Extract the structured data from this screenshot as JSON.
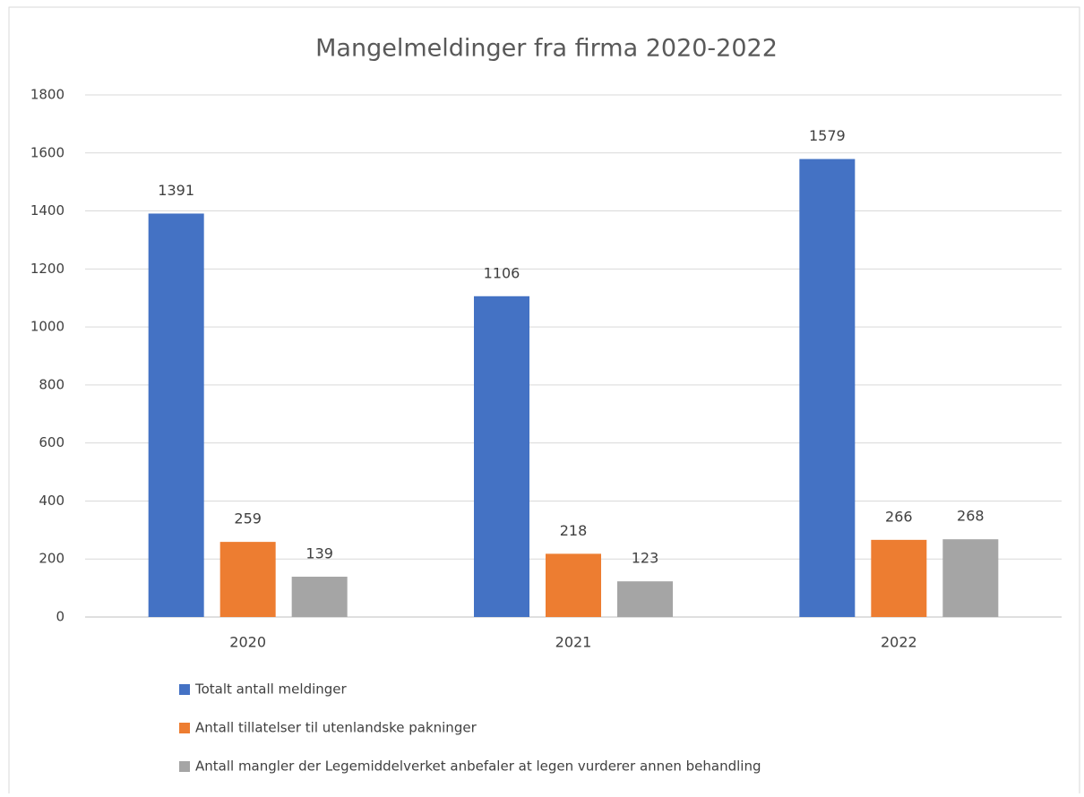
{
  "chart_data": {
    "type": "bar",
    "title": "Mangelmeldinger fra firma 2020-2022",
    "categories": [
      "2020",
      "2021",
      "2022"
    ],
    "series": [
      {
        "name": "Totalt antall meldinger",
        "color": "#4472c4",
        "values": [
          1391,
          1106,
          1579
        ]
      },
      {
        "name": "Antall tillatelser til utenlandske pakninger",
        "color": "#ed7d31",
        "values": [
          259,
          218,
          266
        ]
      },
      {
        "name": "Antall mangler der Legemiddelverket anbefaler at legen vurderer annen behandling",
        "color": "#a5a5a5",
        "values": [
          139,
          123,
          268
        ]
      }
    ],
    "ylim": [
      0,
      1800
    ],
    "yticks": [
      0,
      200,
      400,
      600,
      800,
      1000,
      1200,
      1400,
      1600,
      1800
    ],
    "grid": true,
    "legend": "bottom"
  }
}
